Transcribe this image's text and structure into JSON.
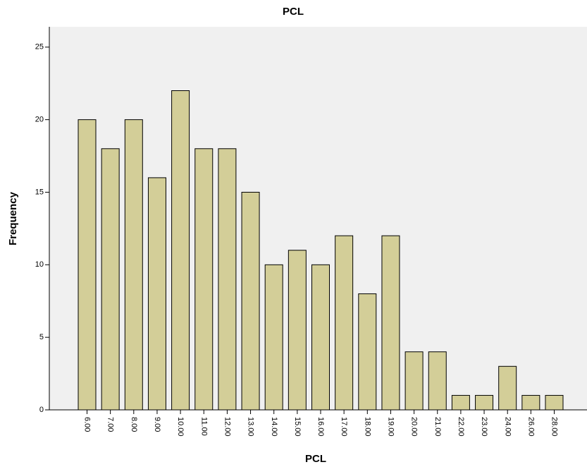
{
  "chart_data": {
    "type": "bar",
    "title": "PCL",
    "x_label": "PCL",
    "y_label": "Frequency",
    "categories": [
      "6.00",
      "7.00",
      "8.00",
      "9.00",
      "10.00",
      "11.00",
      "12.00",
      "13.00",
      "14.00",
      "15.00",
      "16.00",
      "17.00",
      "18.00",
      "19.00",
      "20.00",
      "21.00",
      "22.00",
      "23.00",
      "24.00",
      "26.00",
      "28.00"
    ],
    "values": [
      20,
      18,
      20,
      16,
      22,
      18,
      18,
      15,
      10,
      11,
      10,
      12,
      8,
      12,
      4,
      4,
      1,
      1,
      3,
      1,
      1
    ],
    "color": "#d3ce98",
    "ylim": [
      0,
      26.4
    ],
    "yticks": [
      0,
      5,
      10,
      15,
      20,
      25
    ]
  }
}
